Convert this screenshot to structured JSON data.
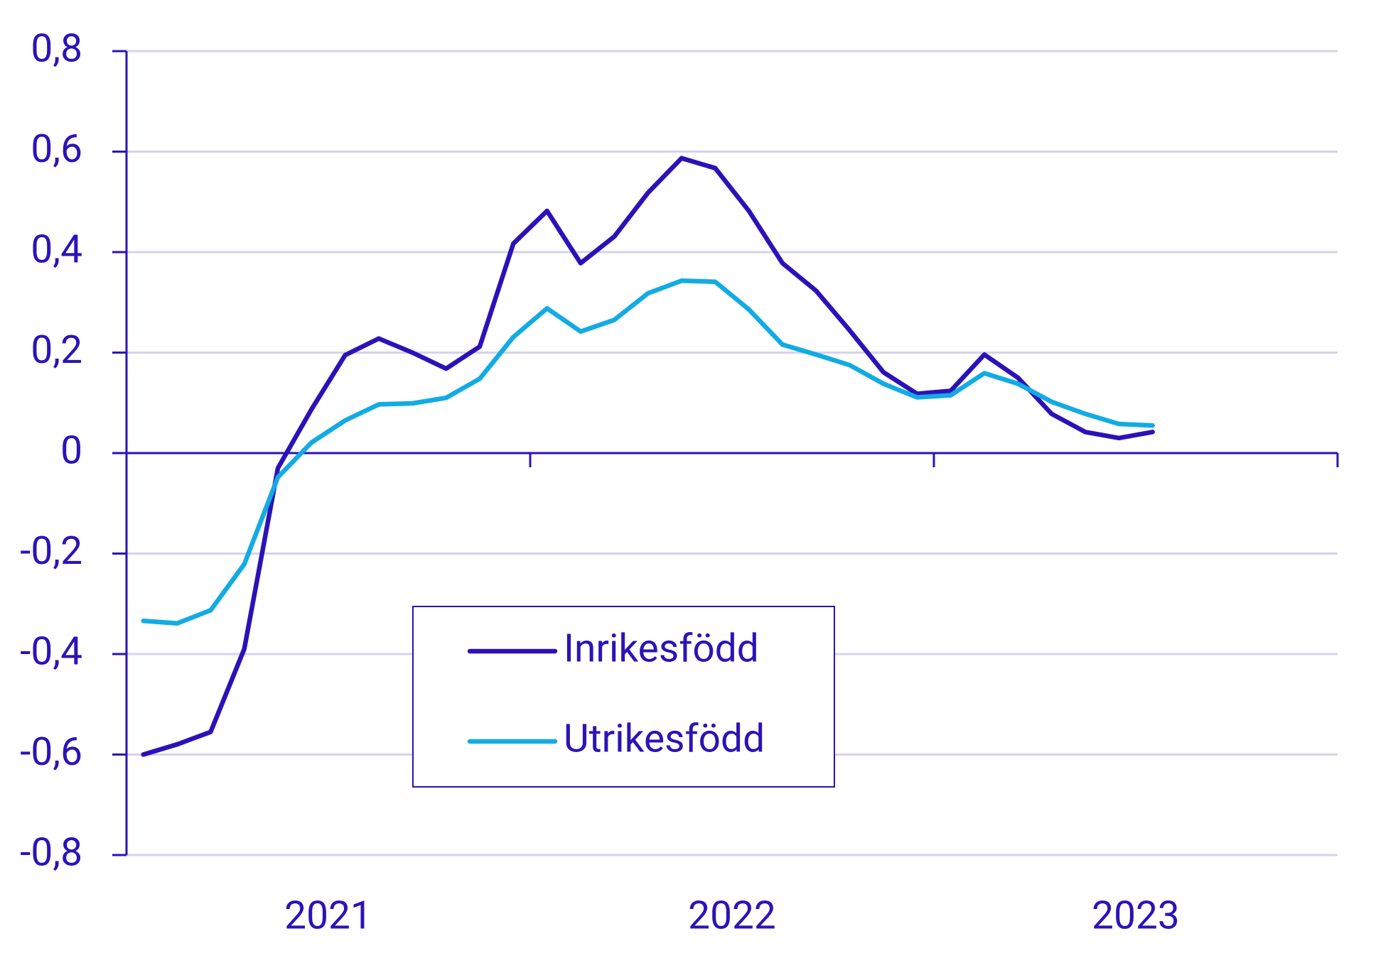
{
  "chart_data": {
    "type": "line",
    "x": [
      0.5,
      1.5,
      2.5,
      3.5,
      4.5,
      5.5,
      6.5,
      7.5,
      8.5,
      9.5,
      10.5,
      11.5,
      12.5,
      13.5,
      14.5,
      15.5,
      16.5,
      17.5,
      18.5,
      19.5,
      20.5,
      21.5,
      22.5,
      23.5,
      24.5,
      25.5,
      26.5,
      27.5,
      28.5,
      29.5,
      30.5
    ],
    "xlim": [
      0,
      36
    ],
    "xticks": [
      {
        "value": 6,
        "label": "2021"
      },
      {
        "value": 18,
        "label": "2022"
      },
      {
        "value": 30,
        "label": "2023"
      }
    ],
    "xtick_marks": [
      0,
      12,
      24,
      36
    ],
    "ylim": [
      -0.8,
      0.8
    ],
    "yticks": [
      {
        "value": -0.8,
        "label": "-0,8"
      },
      {
        "value": -0.6,
        "label": "-0,6"
      },
      {
        "value": -0.4,
        "label": "-0,4"
      },
      {
        "value": -0.2,
        "label": "-0,2"
      },
      0,
      {
        "value": 0.2,
        "label": "0,2"
      },
      {
        "value": 0.4,
        "label": "0,4"
      },
      {
        "value": 0.6,
        "label": "0,6"
      },
      {
        "value": 0.8,
        "label": "0,8"
      }
    ],
    "grid": true,
    "series": [
      {
        "name": "Inrikesfödd",
        "color": "#2b12b8",
        "values": [
          -0.6,
          -0.58,
          -0.555,
          -0.39,
          -0.03,
          0.087,
          0.195,
          0.228,
          0.2,
          0.168,
          0.212,
          0.417,
          0.482,
          0.378,
          0.431,
          0.518,
          0.587,
          0.567,
          0.482,
          0.378,
          0.323,
          0.244,
          0.161,
          0.118,
          0.124,
          0.196,
          0.15,
          0.078,
          0.042,
          0.03,
          0.042
        ]
      },
      {
        "name": "Utrikesfödd",
        "color": "#12abe3",
        "values": [
          -0.334,
          -0.339,
          -0.313,
          -0.221,
          -0.048,
          0.021,
          0.065,
          0.097,
          0.099,
          0.11,
          0.148,
          0.231,
          0.288,
          0.242,
          0.265,
          0.318,
          0.343,
          0.341,
          0.286,
          0.216,
          0.196,
          0.175,
          0.138,
          0.111,
          0.115,
          0.159,
          0.138,
          0.102,
          0.078,
          0.058,
          0.055
        ]
      }
    ]
  }
}
